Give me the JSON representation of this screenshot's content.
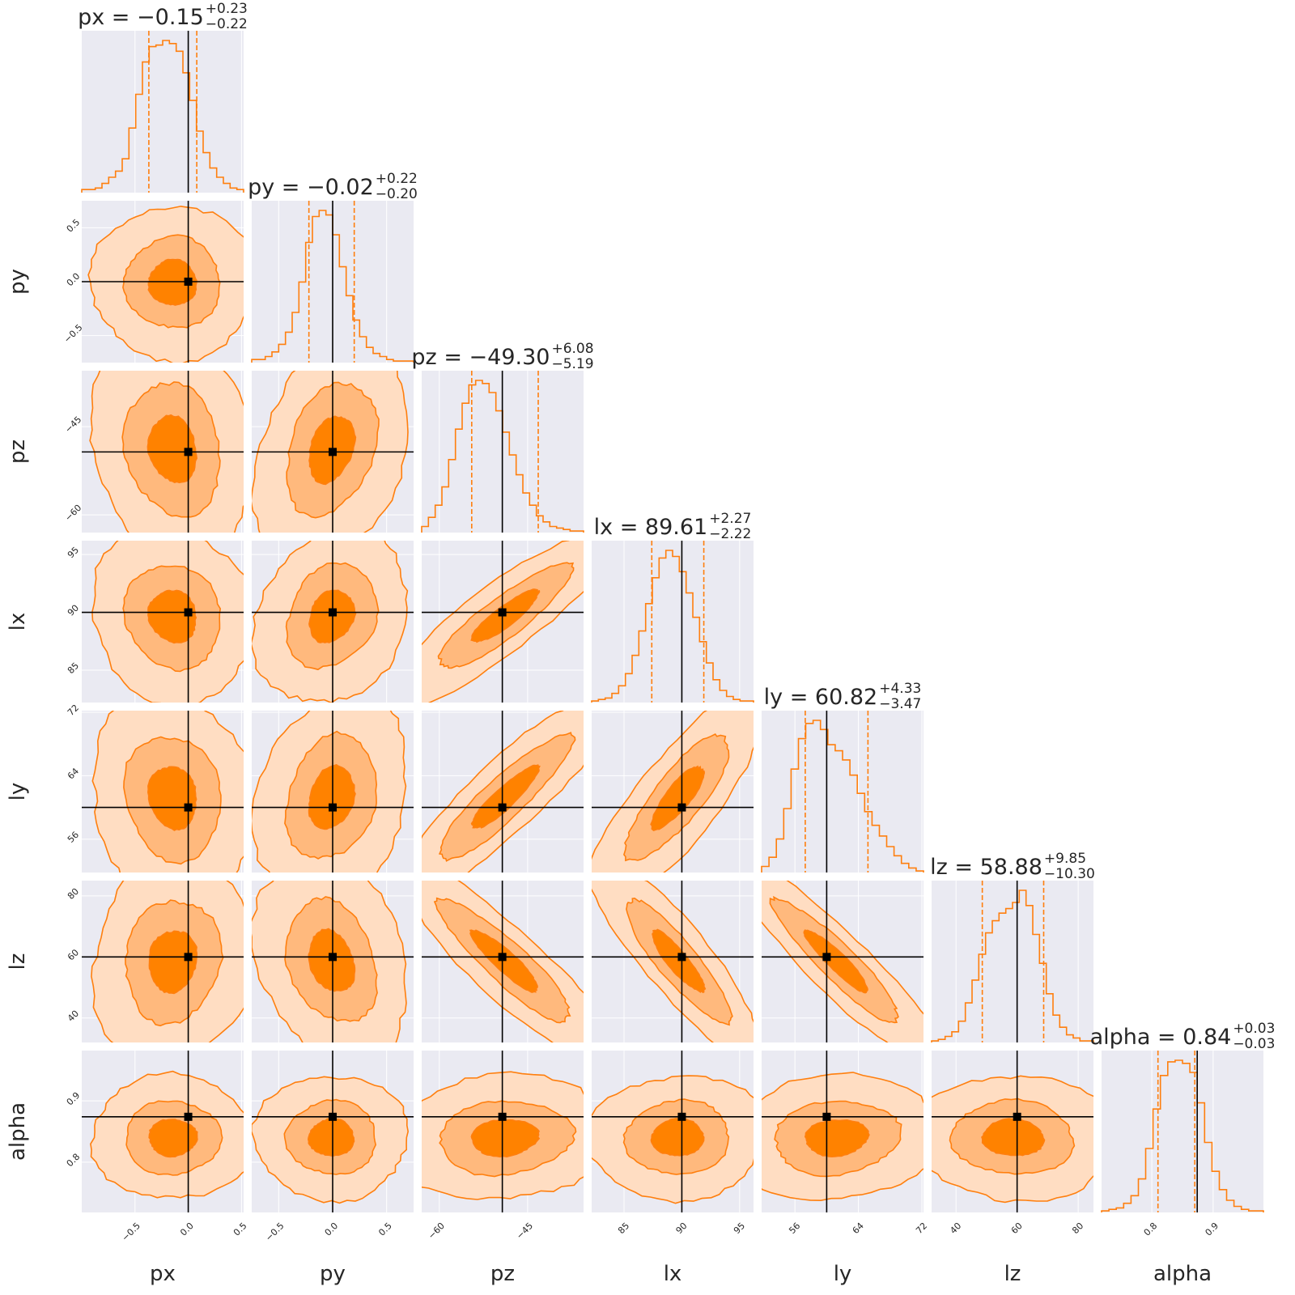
{
  "chart_data": {
    "type": "corner",
    "parameters": [
      "px",
      "py",
      "pz",
      "lx",
      "ly",
      "lz",
      "alpha"
    ],
    "ranges": [
      [
        -1.0,
        0.52
      ],
      [
        -0.75,
        0.75
      ],
      [
        -63,
        -35.5
      ],
      [
        82.2,
        96.2
      ],
      [
        51.8,
        72.2
      ],
      [
        32,
        85
      ],
      [
        0.718,
        0.982
      ]
    ],
    "truths": [
      0.0,
      0.0,
      -49.3,
      90.0,
      60.0,
      60.0,
      0.874
    ],
    "titles": [
      {
        "name": "px",
        "value": "−0.15",
        "plus": "+0.23",
        "minus": "−0.22"
      },
      {
        "name": "py",
        "value": "−0.02",
        "plus": "+0.22",
        "minus": "−0.20"
      },
      {
        "name": "pz",
        "value": "−49.30",
        "plus": "+6.08",
        "minus": "−5.19"
      },
      {
        "name": "lx",
        "value": "89.61",
        "plus": "+2.27",
        "minus": "−2.22"
      },
      {
        "name": "ly",
        "value": "60.82",
        "plus": "+4.33",
        "minus": "−3.47"
      },
      {
        "name": "lz",
        "value": "58.88",
        "plus": "+9.85",
        "minus": "−10.30"
      },
      {
        "name": "alpha",
        "value": "0.84",
        "plus": "+0.03",
        "minus": "−0.03"
      }
    ],
    "quantiles_16_84": [
      [
        -0.37,
        0.08
      ],
      [
        -0.22,
        0.2
      ],
      [
        -54.5,
        -43.2
      ],
      [
        87.4,
        91.9
      ],
      [
        57.3,
        65.2
      ],
      [
        48.6,
        68.7
      ],
      [
        0.81,
        0.87
      ]
    ],
    "ticks": [
      [
        "-0.5",
        "0.0",
        "0.5"
      ],
      [
        "-0.5",
        "0.0",
        "0.5"
      ],
      [
        "-60",
        "-45"
      ],
      [
        "85",
        "90",
        "95"
      ],
      [
        "56",
        "64",
        "72"
      ],
      [
        "40",
        "60",
        "80"
      ],
      [
        "0.8",
        "0.9"
      ]
    ],
    "tick_text": [
      [
        "−0.5",
        "0.0",
        "0.5"
      ],
      [
        "−0.5",
        "0.0",
        "0.5"
      ],
      [
        "−60",
        "−45"
      ],
      [
        "85",
        "90",
        "95"
      ],
      [
        "56",
        "64",
        "72"
      ],
      [
        "40",
        "60",
        "80"
      ],
      [
        "0.8",
        "0.9"
      ]
    ],
    "histograms": [
      [
        2,
        2,
        3,
        6,
        10,
        14,
        22,
        42,
        64,
        85,
        95,
        96,
        99,
        97,
        92,
        78,
        60,
        40,
        26,
        16,
        10,
        6,
        3,
        2
      ],
      [
        2,
        2,
        4,
        7,
        12,
        20,
        33,
        53,
        79,
        96,
        100,
        97,
        84,
        63,
        44,
        28,
        17,
        10,
        6,
        4,
        2,
        1,
        1,
        1
      ],
      [
        4,
        10,
        18,
        30,
        48,
        68,
        85,
        97,
        100,
        98,
        92,
        80,
        66,
        51,
        38,
        26,
        18,
        11,
        7,
        4,
        3,
        2,
        1,
        1
      ],
      [
        1,
        2,
        3,
        6,
        11,
        19,
        31,
        47,
        65,
        82,
        95,
        100,
        96,
        86,
        72,
        56,
        40,
        26,
        15,
        8,
        4,
        2,
        1,
        1
      ],
      [
        4,
        10,
        22,
        42,
        68,
        88,
        98,
        100,
        94,
        84,
        80,
        74,
        64,
        52,
        40,
        31,
        24,
        17,
        11,
        6,
        3,
        1
      ],
      [
        1,
        2,
        4,
        7,
        14,
        26,
        41,
        58,
        72,
        80,
        85,
        88,
        92,
        100,
        90,
        71,
        52,
        32,
        18,
        10,
        5,
        3,
        1,
        1
      ],
      [
        1,
        2,
        3,
        6,
        11,
        22,
        42,
        68,
        90,
        99,
        100,
        98,
        92,
        72,
        46,
        27,
        15,
        8,
        4,
        2,
        1,
        1
      ]
    ],
    "correlations": {
      "2-0": -0.15,
      "3-0": -0.1,
      "4-0": -0.12,
      "5-0": 0.1,
      "6-0": 0.0,
      "2-1": 0.3,
      "3-1": 0.2,
      "4-1": 0.22,
      "5-1": -0.25,
      "6-1": 0.0,
      "3-2": 0.88,
      "4-2": 0.9,
      "5-2": -0.9,
      "6-2": 0.1,
      "4-3": 0.82,
      "5-3": -0.88,
      "6-3": 0.05,
      "5-4": -0.92,
      "6-4": 0.1,
      "6-5": -0.05
    },
    "contour_levels": [
      "39.3%",
      "86.5%",
      "98.9%"
    ],
    "colors": {
      "fill_outer": "#ffddc2",
      "fill_mid": "#ffb97d",
      "fill_inner": "#ff8200",
      "line": "#ff7f0e",
      "truth": "#000000",
      "panel_bg": "#eaeaf2",
      "grid": "#ffffff",
      "text": "#262626"
    }
  }
}
